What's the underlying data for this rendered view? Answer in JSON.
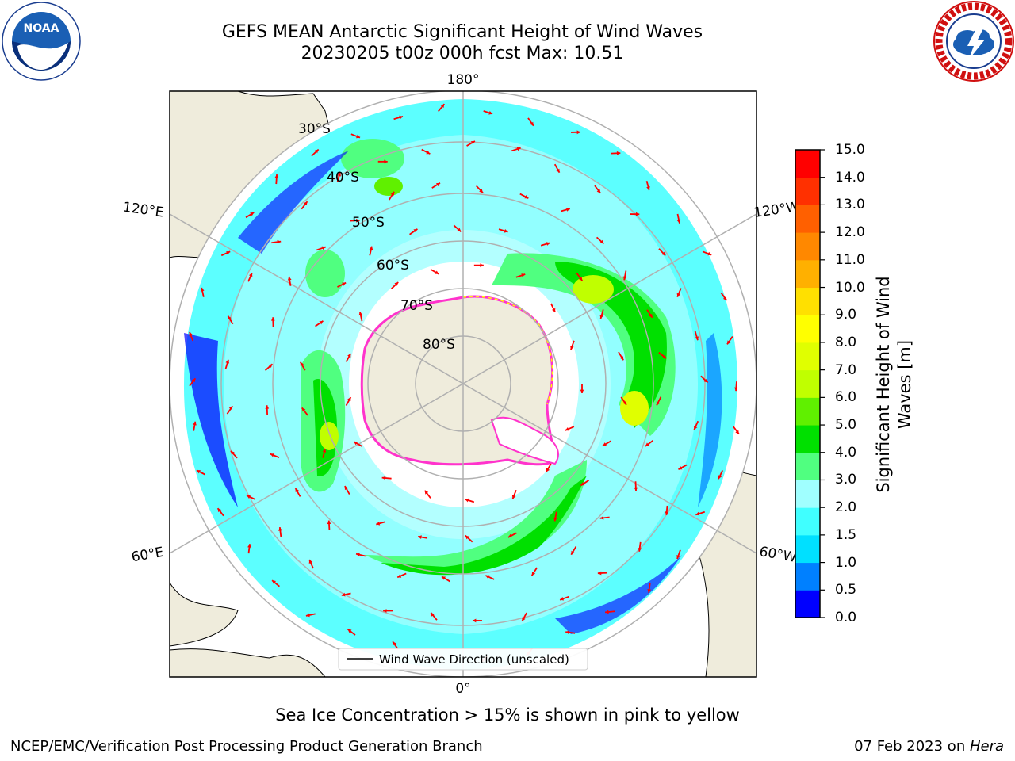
{
  "title": {
    "line1": "GEFS MEAN Antarctic Significant Height of Wind Waves",
    "line2": "20230205 t00z 000h fcst   Max: 10.51"
  },
  "logos": {
    "left": "noaa-logo",
    "left_text": "NOAA",
    "right": "national-weather-service-logo"
  },
  "map": {
    "projection": "south-polar-stereographic",
    "longitude_labels": {
      "top": "180°",
      "bottom": "0°",
      "upper_left": "120°E",
      "upper_right": "120°W",
      "lower_left": "60°E",
      "lower_right": "60°W"
    },
    "latitude_labels": [
      "30°S",
      "40°S",
      "50°S",
      "60°S",
      "70°S",
      "80°S"
    ],
    "legend_label": "Wind Wave Direction (unscaled)",
    "colors": {
      "land": "#efecdc",
      "ocean_none": "#ffffff",
      "arrow": "#ff0000",
      "ice_edge": "#ff33cc",
      "grid": "#b0b0b0"
    }
  },
  "colorbar": {
    "label": "Significant Height of Wind Waves [m]",
    "label_line1": "Significant Height of Wind",
    "label_line2": "Waves [m]",
    "ticks": [
      "0.0",
      "0.5",
      "1.0",
      "1.5",
      "2.0",
      "3.0",
      "4.0",
      "5.0",
      "6.0",
      "7.0",
      "8.0",
      "9.0",
      "10.0",
      "11.0",
      "12.0",
      "13.0",
      "14.0",
      "15.0"
    ],
    "colors": [
      "#0000ff",
      "#0080ff",
      "#00e0ff",
      "#40ffff",
      "#a0ffff",
      "#50ff80",
      "#00e000",
      "#60f000",
      "#c0ff00",
      "#e0ff00",
      "#ffff00",
      "#ffe000",
      "#ffb000",
      "#ff8800",
      "#ff6000",
      "#ff3000",
      "#ff0000"
    ]
  },
  "ice_note": "Sea Ice Concentration > 15% is shown in pink to yellow",
  "footer": {
    "left": "NCEP/EMC/Verification Post Processing Product Generation Branch",
    "right_prefix": "07 Feb 2023 on ",
    "right_machine": "Hera"
  }
}
